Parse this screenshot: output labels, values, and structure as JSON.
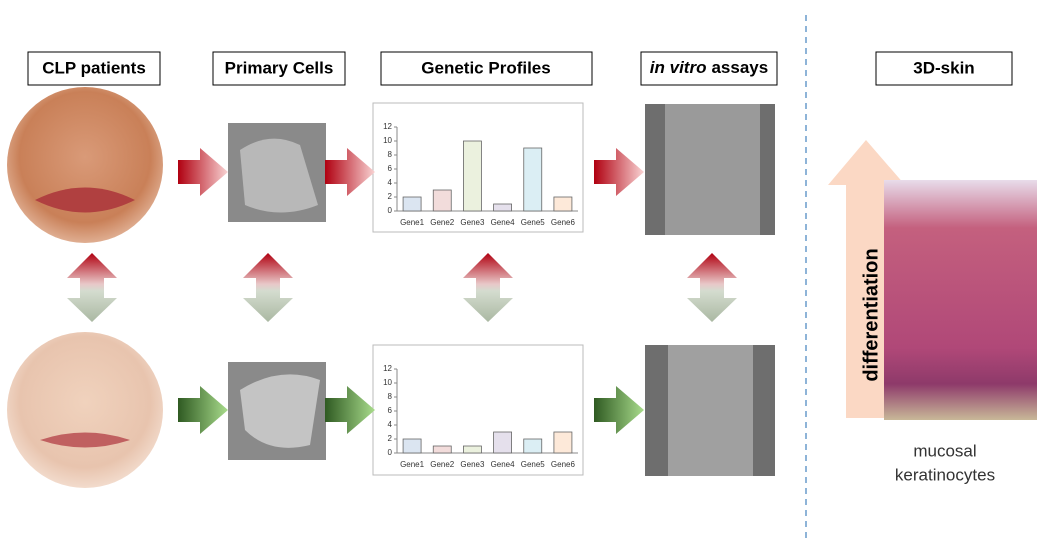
{
  "headers": [
    "CLP patients",
    "Primary Cells",
    "Genetic Profiles",
    {
      "italic": "in vitro",
      "text": "assays"
    },
    "3D-skin"
  ],
  "side_label": "differentiation",
  "caption": [
    "mucosal",
    "keratinocytes"
  ],
  "charts": [
    {
      "type": "bar",
      "categories": [
        "Gene1",
        "Gene2",
        "Gene3",
        "Gene4",
        "Gene5",
        "Gene6"
      ],
      "values": [
        2,
        3,
        10,
        1,
        9,
        2
      ],
      "colors": [
        "#dbe5f1",
        "#f2dcdb",
        "#ebf1de",
        "#e5e0ec",
        "#dbeef4",
        "#fde9d9"
      ],
      "ylim": [
        0,
        12
      ],
      "yticks": [
        0,
        2,
        4,
        6,
        8,
        10,
        12
      ]
    },
    {
      "type": "bar",
      "categories": [
        "Gene1",
        "Gene2",
        "Gene3",
        "Gene4",
        "Gene5",
        "Gene6"
      ],
      "values": [
        2,
        1,
        1,
        3,
        2,
        3
      ],
      "colors": [
        "#dbe5f1",
        "#f2dcdb",
        "#ebf1de",
        "#e5e0ec",
        "#dbeef4",
        "#fde9d9"
      ],
      "ylim": [
        0,
        12
      ],
      "yticks": [
        0,
        2,
        4,
        6,
        8,
        10,
        12
      ]
    }
  ]
}
